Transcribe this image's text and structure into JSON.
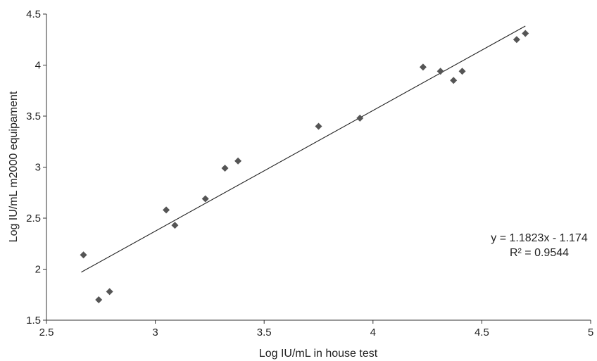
{
  "chart_data": {
    "type": "scatter",
    "title": "",
    "xlabel": "Log IU/mL in house test",
    "ylabel": "Log IU/mL m2000 equipament",
    "xlim": [
      2.5,
      5
    ],
    "ylim": [
      1.5,
      4.5
    ],
    "xticks": [
      "2.5",
      "3",
      "3.5",
      "4",
      "4.5",
      "5"
    ],
    "yticks": [
      "1.5",
      "2",
      "2.5",
      "3",
      "3.5",
      "4",
      "4.5"
    ],
    "grid": false,
    "legend": "none",
    "marker_color": "#555555",
    "points": [
      {
        "x": 2.67,
        "y": 2.14
      },
      {
        "x": 2.74,
        "y": 1.7
      },
      {
        "x": 2.79,
        "y": 1.78
      },
      {
        "x": 3.05,
        "y": 2.58
      },
      {
        "x": 3.09,
        "y": 2.43
      },
      {
        "x": 3.23,
        "y": 2.69
      },
      {
        "x": 3.32,
        "y": 2.99
      },
      {
        "x": 3.38,
        "y": 3.06
      },
      {
        "x": 3.75,
        "y": 3.4
      },
      {
        "x": 3.94,
        "y": 3.48
      },
      {
        "x": 4.23,
        "y": 3.98
      },
      {
        "x": 4.31,
        "y": 3.94
      },
      {
        "x": 4.37,
        "y": 3.85
      },
      {
        "x": 4.41,
        "y": 3.94
      },
      {
        "x": 4.66,
        "y": 4.25
      },
      {
        "x": 4.7,
        "y": 4.31
      }
    ],
    "trendline": {
      "type": "linear",
      "slope": 1.1823,
      "intercept": -1.174,
      "x_range": [
        2.66,
        4.7
      ],
      "equation": "y = 1.1823x - 1.174",
      "r_squared": "R² = 0.9544"
    }
  }
}
